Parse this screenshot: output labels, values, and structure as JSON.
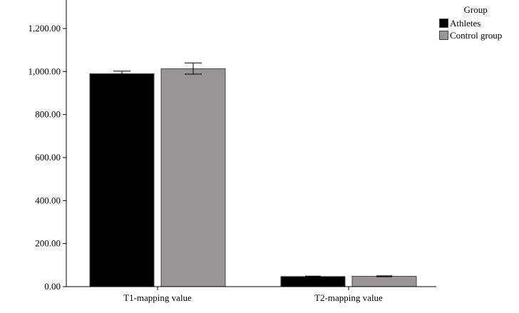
{
  "chart_data": {
    "type": "bar",
    "categories": [
      "T1-mapping value",
      "T2-mapping value"
    ],
    "series": [
      {
        "name": "Athletes",
        "values": [
          990,
          47
        ],
        "error": [
          [
            983,
            1002
          ],
          [
            45,
            49
          ]
        ],
        "color": "#000000"
      },
      {
        "name": "Control group",
        "values": [
          1013,
          48
        ],
        "error": [
          [
            988,
            1040
          ],
          [
            46,
            50
          ]
        ],
        "color": "#9a9595"
      }
    ],
    "ylim": [
      0,
      1333
    ],
    "yticks": [
      0,
      200,
      400,
      600,
      800,
      1000,
      1200
    ],
    "ytick_labels": [
      "0.00",
      "200.00",
      "400.00",
      "600.00",
      "800.00",
      "1,000.00",
      "1,200.00"
    ],
    "xlabel": "",
    "ylabel": "",
    "legend": {
      "title": "Group",
      "position": "top-right"
    },
    "grid": false
  }
}
